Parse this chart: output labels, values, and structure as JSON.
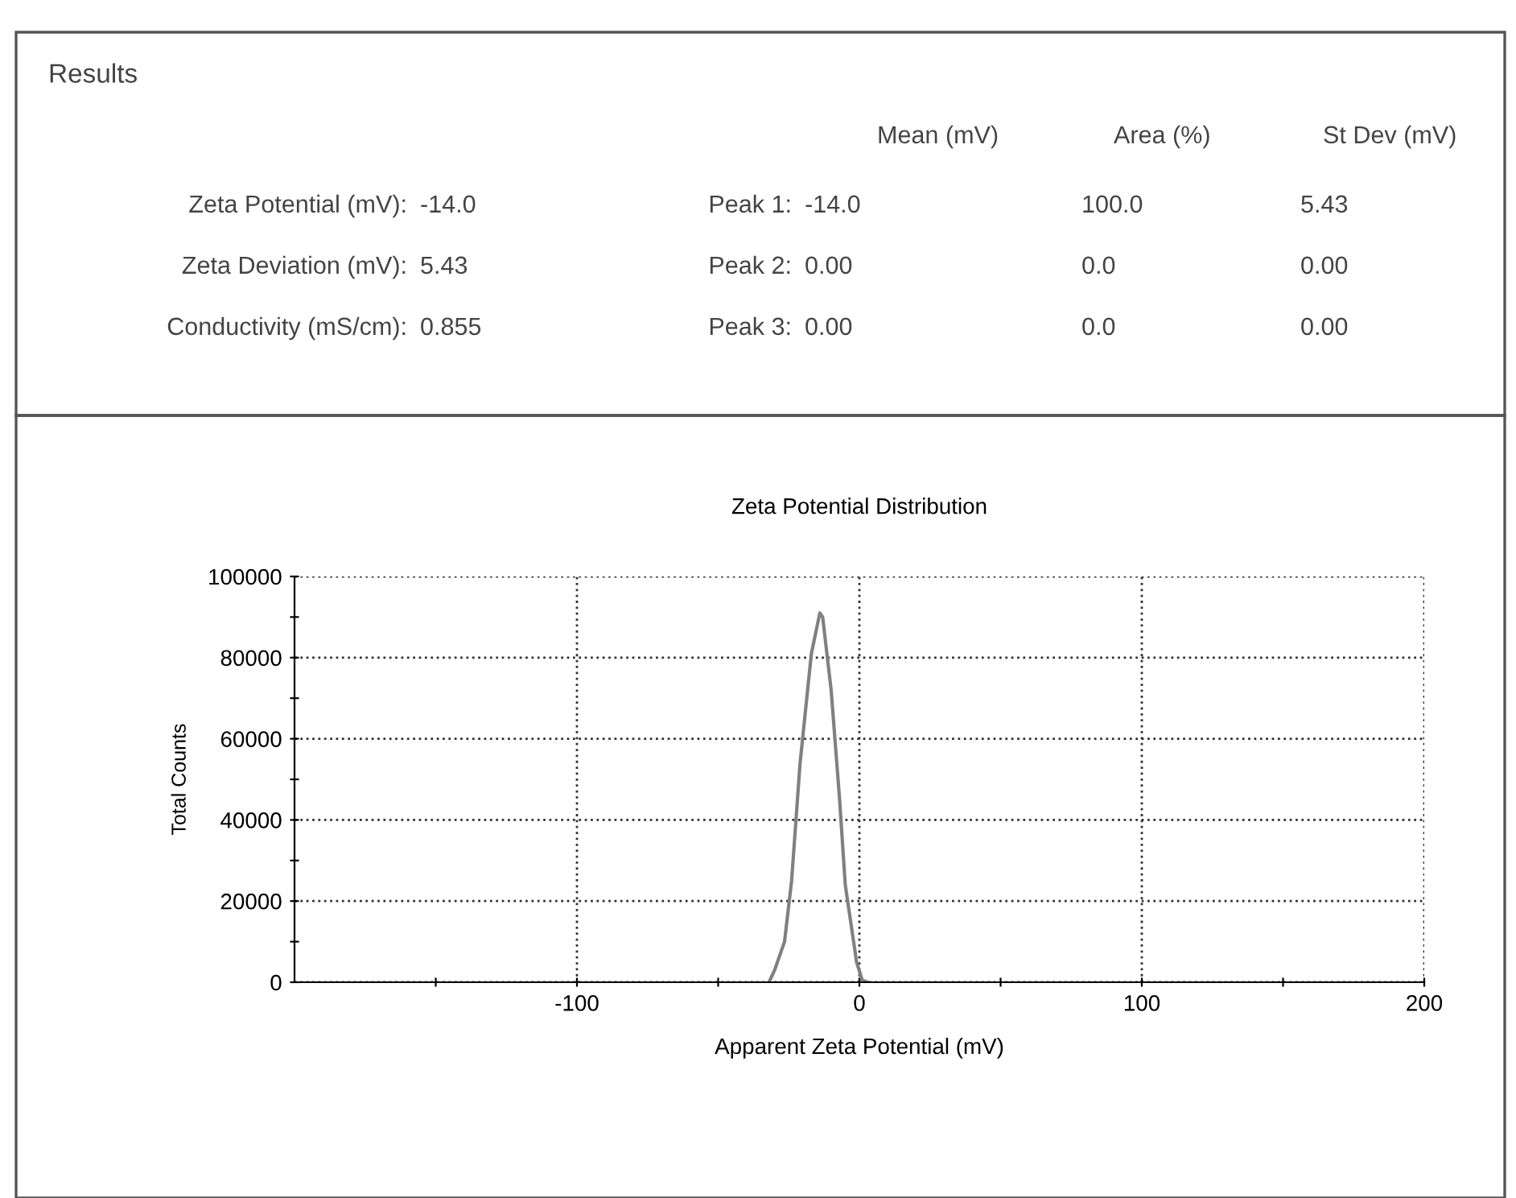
{
  "chart_data": {
    "type": "line",
    "title": "Zeta Potential Distribution",
    "xlabel": "Apparent Zeta Potential (mV)",
    "ylabel": "Total Counts",
    "x": [
      -32,
      -30,
      -26.5,
      -24,
      -21,
      -17,
      -14,
      -13,
      -10,
      -7,
      -5,
      -1,
      1,
      3
    ],
    "series": [
      {
        "color": "#808080",
        "values": [
          0,
          3000,
          10000,
          25000,
          54000,
          81000,
          91000,
          90000,
          72000,
          45000,
          24000,
          5000,
          500,
          0
        ]
      }
    ],
    "xlim": [
      -200,
      200
    ],
    "xticks": [
      {
        "value": -150,
        "label": null
      },
      -100,
      {
        "value": -50,
        "label": null
      },
      0,
      {
        "value": 50,
        "label": null
      },
      100,
      {
        "value": 150,
        "label": null
      },
      200
    ],
    "ylim": [
      0,
      100000
    ],
    "yticks": [
      0,
      {
        "value": 10000,
        "label": null
      },
      20000,
      {
        "value": 30000,
        "label": null
      },
      40000,
      {
        "value": 50000,
        "label": null
      },
      60000,
      {
        "value": 70000,
        "label": null
      },
      80000,
      {
        "value": 90000,
        "label": null
      },
      100000
    ],
    "grid": true,
    "marker": "none",
    "line_style": "solid",
    "annotations": [
      "Results",
      "Mean (mV)",
      "Area (%)",
      "St Dev (mV)",
      "Zeta Potential (mV):",
      "-14.0",
      "Peak 1:",
      "-14.0",
      "100.0",
      "5.43",
      "Zeta Deviation (mV):",
      "5.43",
      "Peak 2:",
      "0.00",
      "0.0",
      "0.00",
      "Conductivity (mS/cm):",
      "0.855",
      "Peak 3:",
      "0.00",
      "0.0",
      "0.00"
    ]
  }
}
